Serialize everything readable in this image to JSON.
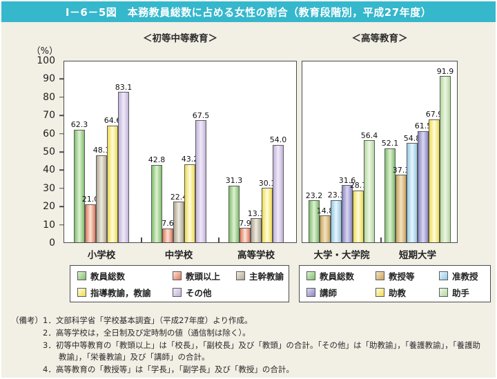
{
  "title": "Ⅰ－6－5図　本務教員総数に占める女性の割合（教育段階別，平成27年度）",
  "y_axis": {
    "unit": "（%）",
    "max": 100,
    "ticks": [
      100,
      90,
      80,
      70,
      60,
      50,
      40,
      30,
      20,
      10,
      0
    ]
  },
  "chart_data": [
    {
      "type": "bar",
      "panel_title": "＜初等中等教育＞",
      "categories": [
        "小学校",
        "中学校",
        "高等学校"
      ],
      "ylim": [
        0,
        100
      ],
      "grid": false,
      "legend_position": "bottom",
      "series": [
        {
          "name": "教員総数",
          "color_edge": "#7fbe6b",
          "color_center": "#dff1d4",
          "values": [
            62.3,
            42.8,
            31.3
          ]
        },
        {
          "name": "教頭以上",
          "color_edge": "#e0775a",
          "color_center": "#fbe4da",
          "values": [
            21.0,
            7.6,
            7.9
          ]
        },
        {
          "name": "主幹教諭",
          "color_edge": "#afa694",
          "color_center": "#efebdf",
          "values": [
            48.1,
            22.4,
            13.3
          ]
        },
        {
          "name": "指導教諭，教諭",
          "color_edge": "#eedc4e",
          "color_center": "#fffce0",
          "values": [
            64.6,
            43.2,
            30.1
          ]
        },
        {
          "name": "その他",
          "color_edge": "#c2b2da",
          "color_center": "#f0eaf8",
          "values": [
            83.1,
            67.5,
            54.0
          ]
        }
      ]
    },
    {
      "type": "bar",
      "panel_title": "＜高等教育＞",
      "categories": [
        "大学・大学院",
        "短期大学"
      ],
      "ylim": [
        0,
        100
      ],
      "grid": false,
      "legend_position": "bottom",
      "series": [
        {
          "name": "教員総数",
          "color_edge": "#7fbe6b",
          "color_center": "#dff1d4",
          "values": [
            23.2,
            52.1
          ]
        },
        {
          "name": "教授等",
          "color_edge": "#c9a45c",
          "color_center": "#f2e4c4",
          "values": [
            14.8,
            37.3
          ]
        },
        {
          "name": "准教授",
          "color_edge": "#93c9e6",
          "color_center": "#e9f5fc",
          "values": [
            23.3,
            54.8
          ]
        },
        {
          "name": "講師",
          "color_edge": "#8b87c5",
          "color_center": "#dbd8f0",
          "values": [
            31.6,
            61.5
          ]
        },
        {
          "name": "助教",
          "color_edge": "#eedc4e",
          "color_center": "#fffce0",
          "values": [
            28.7,
            67.9
          ]
        },
        {
          "name": "助手",
          "color_edge": "#b4d89f",
          "color_center": "#edf6e4",
          "values": [
            56.4,
            91.9
          ]
        }
      ]
    }
  ],
  "notes": {
    "label": "（備考）",
    "items": [
      "1．文部科学省「学校基本調査」（平成27年度）より作成。",
      "2．高等学校は，全日制及び定時制の値（通信制は除く）。",
      "3．初等中等教育の「教頭以上」は「校長」，「副校長」及び「教頭」の合計。「その他」は「助教諭」，「養護教諭」，「養護助教諭」，「栄養教諭」及び「講師」の合計。",
      "4．高等教育の「教授等」は「学長」，「副学長」及び「教授」の合計。"
    ]
  },
  "colors": {
    "title_bar": "#35b7cc",
    "page_background": "#f2efe5",
    "panel_background": "#ffffff",
    "axis": "#4a4a4a"
  }
}
